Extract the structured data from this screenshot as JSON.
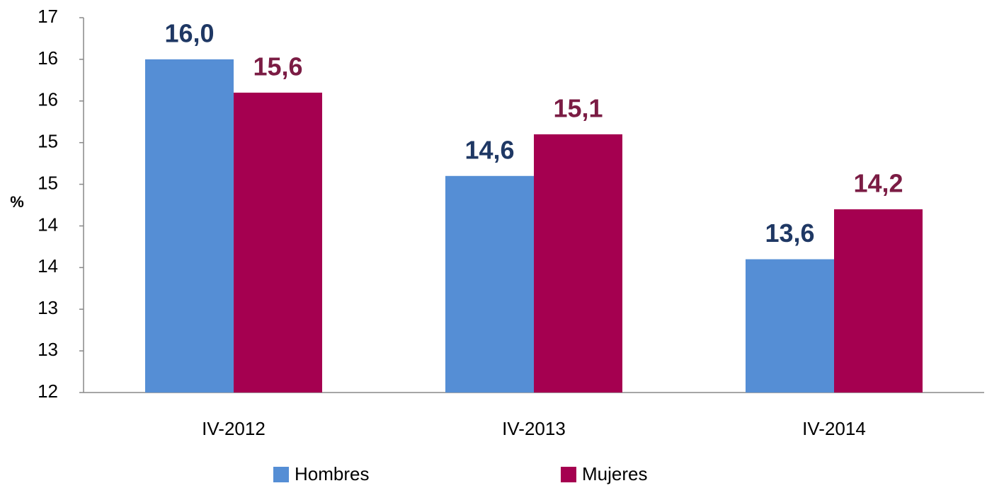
{
  "chart_data": {
    "type": "bar",
    "y_label": "%",
    "categories": [
      "IV-2012",
      "IV-2013",
      "IV-2014"
    ],
    "series": [
      {
        "name": "Hombres",
        "color": "#558ed5",
        "label_color": "#1f3864",
        "values": [
          16.0,
          14.6,
          13.6
        ],
        "value_labels": [
          "16,0",
          "14,6",
          "13,6"
        ]
      },
      {
        "name": "Mujeres",
        "color": "#a50050",
        "label_color": "#7b1c44",
        "values": [
          15.6,
          15.1,
          14.2
        ],
        "value_labels": [
          "15,6",
          "15,1",
          "14,2"
        ]
      }
    ],
    "ylim": [
      12,
      16.5
    ],
    "yticks": [
      12,
      {
        "value": 12.5,
        "label": "13"
      },
      13,
      {
        "value": 13.5,
        "label": "14"
      },
      14,
      {
        "value": 14.5,
        "label": "15"
      },
      15,
      {
        "value": 15.5,
        "label": "16"
      },
      16,
      {
        "value": 16.5,
        "label": "17"
      }
    ],
    "grid": false,
    "legend": "bottom"
  }
}
